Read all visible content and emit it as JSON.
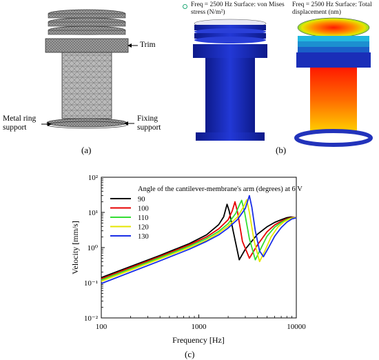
{
  "panel_a": {
    "label": "(a)",
    "callouts": {
      "trim": "Trim",
      "metal_ring": "Metal ring\nsupport",
      "fixing": "Fixing\nsupport"
    }
  },
  "panel_b": {
    "label": "(b)",
    "left_title": "Freq = 2500 Hz Surface: von Mises\nstress (N/m²)",
    "right_title": "Freq = 2500 Hz Surface: Total\ndisplacement (nm)"
  },
  "panel_c": {
    "label": "(c)"
  },
  "colors": {
    "stress_blue": "#1b2fbf",
    "series": [
      "#000000",
      "#e60000",
      "#33dd33",
      "#e6e600",
      "#1a2ee6"
    ]
  },
  "chart_data": {
    "type": "line",
    "xlabel": "Frequency [Hz]",
    "ylabel": "Velocity [mm/s]",
    "x_scale": "log",
    "y_scale": "log",
    "xlim": [
      100,
      10000
    ],
    "ylim": [
      0.01,
      100
    ],
    "x_ticks": [
      "100",
      "1000",
      "10000"
    ],
    "y_ticks": [
      "10⁻²",
      "10⁻¹",
      "10⁰",
      "10¹",
      "10²"
    ],
    "legend_title": "Angle of the cantilever-membrane's arm (degrees) at 6 V",
    "legend_position": "top-left",
    "series": [
      {
        "name": "90",
        "x": [
          100,
          200,
          400,
          800,
          1200,
          1600,
          1800,
          1950,
          2050,
          2250,
          2600,
          3000,
          4000,
          5000,
          6000,
          7000,
          8000,
          8800,
          9500,
          10000
        ],
        "y": [
          0.14,
          0.29,
          0.6,
          1.3,
          2.3,
          4.5,
          7.5,
          17,
          11,
          3,
          0.45,
          0.9,
          2.4,
          3.9,
          5.2,
          6.2,
          7.1,
          7.4,
          7.2,
          6.9
        ]
      },
      {
        "name": "100",
        "x": [
          100,
          200,
          400,
          800,
          1200,
          1600,
          2000,
          2200,
          2350,
          2500,
          2800,
          3300,
          4000,
          5000,
          6000,
          7000,
          8000,
          8800,
          9500,
          10000
        ],
        "y": [
          0.13,
          0.27,
          0.56,
          1.2,
          2.0,
          3.4,
          6.2,
          11,
          20,
          10,
          1.5,
          0.5,
          1.2,
          2.8,
          4.4,
          5.6,
          6.6,
          7.1,
          7.2,
          7.0
        ]
      },
      {
        "name": "110",
        "x": [
          100,
          200,
          400,
          800,
          1200,
          1600,
          2000,
          2400,
          2600,
          2750,
          2950,
          3300,
          3800,
          4300,
          5000,
          6000,
          7000,
          8000,
          8800,
          9500,
          10000
        ],
        "y": [
          0.12,
          0.25,
          0.52,
          1.1,
          1.8,
          2.9,
          4.8,
          9.5,
          16,
          22,
          10,
          1.8,
          0.45,
          0.9,
          2.1,
          3.8,
          5.2,
          6.3,
          6.9,
          7.1,
          7.0
        ]
      },
      {
        "name": "120",
        "x": [
          100,
          200,
          400,
          800,
          1200,
          1600,
          2000,
          2500,
          2900,
          3100,
          3300,
          3700,
          4200,
          4800,
          5500,
          6500,
          7500,
          8500,
          9200,
          10000
        ],
        "y": [
          0.11,
          0.23,
          0.48,
          1.0,
          1.6,
          2.6,
          4.1,
          7.5,
          15,
          23,
          10,
          1.5,
          0.4,
          0.85,
          2.0,
          3.9,
          5.4,
          6.5,
          7.0,
          7.0
        ]
      },
      {
        "name": "130",
        "x": [
          100,
          200,
          400,
          800,
          1200,
          1600,
          2000,
          2500,
          3000,
          3300,
          3500,
          3800,
          4200,
          4600,
          5200,
          6000,
          7000,
          8000,
          9000,
          10000
        ],
        "y": [
          0.095,
          0.2,
          0.42,
          0.9,
          1.5,
          2.3,
          3.6,
          6.3,
          13,
          30,
          14,
          3,
          0.8,
          0.55,
          1.0,
          2.1,
          3.7,
          5.3,
          6.5,
          7.0
        ]
      }
    ]
  }
}
